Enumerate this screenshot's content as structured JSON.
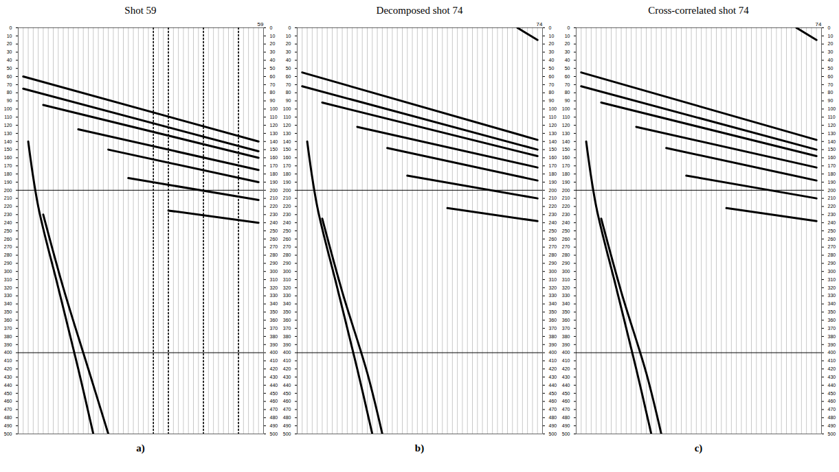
{
  "chart_data": [
    {
      "type": "wiggle",
      "title": "Shot 59",
      "panel": "a)",
      "shot_label": "59",
      "xlim": [
        0,
        49
      ],
      "traces": 48,
      "tick_labels": "y",
      "ylim": [
        0,
        500
      ],
      "yticks": [
        0,
        10,
        20,
        30,
        40,
        50,
        60,
        70,
        80,
        90,
        100,
        110,
        120,
        130,
        140,
        150,
        160,
        170,
        180,
        190,
        200,
        210,
        220,
        230,
        240,
        250,
        260,
        270,
        280,
        290,
        300,
        310,
        320,
        330,
        340,
        350,
        360,
        370,
        380,
        390,
        400,
        410,
        420,
        430,
        440,
        450,
        460,
        470,
        480,
        490,
        500
      ],
      "reference_lines": [
        200,
        400
      ],
      "events": [
        [
          [
            1,
            60
          ],
          [
            48,
            140
          ]
        ],
        [
          [
            1,
            75
          ],
          [
            48,
            152
          ]
        ],
        [
          [
            5,
            95
          ],
          [
            48,
            160
          ]
        ],
        [
          [
            12,
            125
          ],
          [
            48,
            175
          ]
        ],
        [
          [
            18,
            150
          ],
          [
            48,
            190
          ]
        ],
        [
          [
            22,
            185
          ],
          [
            48,
            212
          ]
        ],
        [
          [
            30,
            225
          ],
          [
            48,
            240
          ]
        ],
        [
          [
            2,
            140
          ],
          [
            4,
            220
          ],
          [
            8,
            320
          ],
          [
            12,
            420
          ],
          [
            15,
            500
          ]
        ],
        [
          [
            5,
            230
          ],
          [
            9,
            320
          ],
          [
            14,
            420
          ],
          [
            18,
            500
          ]
        ]
      ],
      "noisy_traces": [
        27,
        30,
        37,
        44
      ]
    },
    {
      "type": "wiggle",
      "title": "Decomposed shot 74",
      "panel": "b)",
      "shot_label": "74",
      "xlim": [
        0,
        49
      ],
      "traces": 48,
      "tick_labels": "y",
      "ylim": [
        0,
        500
      ],
      "yticks": [
        0,
        10,
        20,
        30,
        40,
        50,
        60,
        70,
        80,
        90,
        100,
        110,
        120,
        130,
        140,
        150,
        160,
        170,
        180,
        190,
        200,
        210,
        220,
        230,
        240,
        250,
        260,
        270,
        280,
        290,
        300,
        310,
        320,
        330,
        340,
        350,
        360,
        370,
        380,
        390,
        400,
        410,
        420,
        430,
        440,
        450,
        460,
        470,
        480,
        490,
        500
      ],
      "reference_lines": [
        200,
        400
      ],
      "events": [
        [
          [
            44,
            0
          ],
          [
            48,
            15
          ]
        ],
        [
          [
            1,
            55
          ],
          [
            48,
            138
          ]
        ],
        [
          [
            1,
            72
          ],
          [
            48,
            150
          ]
        ],
        [
          [
            5,
            92
          ],
          [
            48,
            158
          ]
        ],
        [
          [
            12,
            122
          ],
          [
            48,
            172
          ]
        ],
        [
          [
            18,
            148
          ],
          [
            48,
            188
          ]
        ],
        [
          [
            22,
            182
          ],
          [
            48,
            210
          ]
        ],
        [
          [
            30,
            222
          ],
          [
            48,
            238
          ]
        ],
        [
          [
            2,
            140
          ],
          [
            4,
            220
          ],
          [
            8,
            320
          ],
          [
            12,
            420
          ],
          [
            15,
            500
          ]
        ],
        [
          [
            5,
            235
          ],
          [
            9,
            325
          ],
          [
            14,
            425
          ],
          [
            17,
            500
          ]
        ]
      ],
      "noisy_traces": []
    },
    {
      "type": "wiggle",
      "title": "Cross-correlated shot 74",
      "panel": "c)",
      "shot_label": "74",
      "xlim": [
        0,
        49
      ],
      "traces": 48,
      "tick_labels": "y",
      "ylim": [
        0,
        500
      ],
      "yticks": [
        0,
        10,
        20,
        30,
        40,
        50,
        60,
        70,
        80,
        90,
        100,
        110,
        120,
        130,
        140,
        150,
        160,
        170,
        180,
        190,
        200,
        210,
        220,
        230,
        240,
        250,
        260,
        270,
        280,
        290,
        300,
        310,
        320,
        330,
        340,
        350,
        360,
        370,
        380,
        390,
        400,
        410,
        420,
        430,
        440,
        450,
        460,
        470,
        480,
        490,
        500
      ],
      "reference_lines": [
        200,
        400
      ],
      "events": [
        [
          [
            44,
            0
          ],
          [
            48,
            15
          ]
        ],
        [
          [
            1,
            55
          ],
          [
            48,
            138
          ]
        ],
        [
          [
            1,
            72
          ],
          [
            48,
            150
          ]
        ],
        [
          [
            5,
            92
          ],
          [
            48,
            158
          ]
        ],
        [
          [
            12,
            122
          ],
          [
            48,
            172
          ]
        ],
        [
          [
            18,
            148
          ],
          [
            48,
            188
          ]
        ],
        [
          [
            22,
            182
          ],
          [
            48,
            210
          ]
        ],
        [
          [
            30,
            222
          ],
          [
            48,
            238
          ]
        ],
        [
          [
            2,
            140
          ],
          [
            4,
            220
          ],
          [
            8,
            320
          ],
          [
            12,
            420
          ],
          [
            15,
            500
          ]
        ],
        [
          [
            5,
            235
          ],
          [
            9,
            325
          ],
          [
            14,
            425
          ],
          [
            17,
            500
          ]
        ]
      ],
      "noisy_traces": []
    }
  ]
}
